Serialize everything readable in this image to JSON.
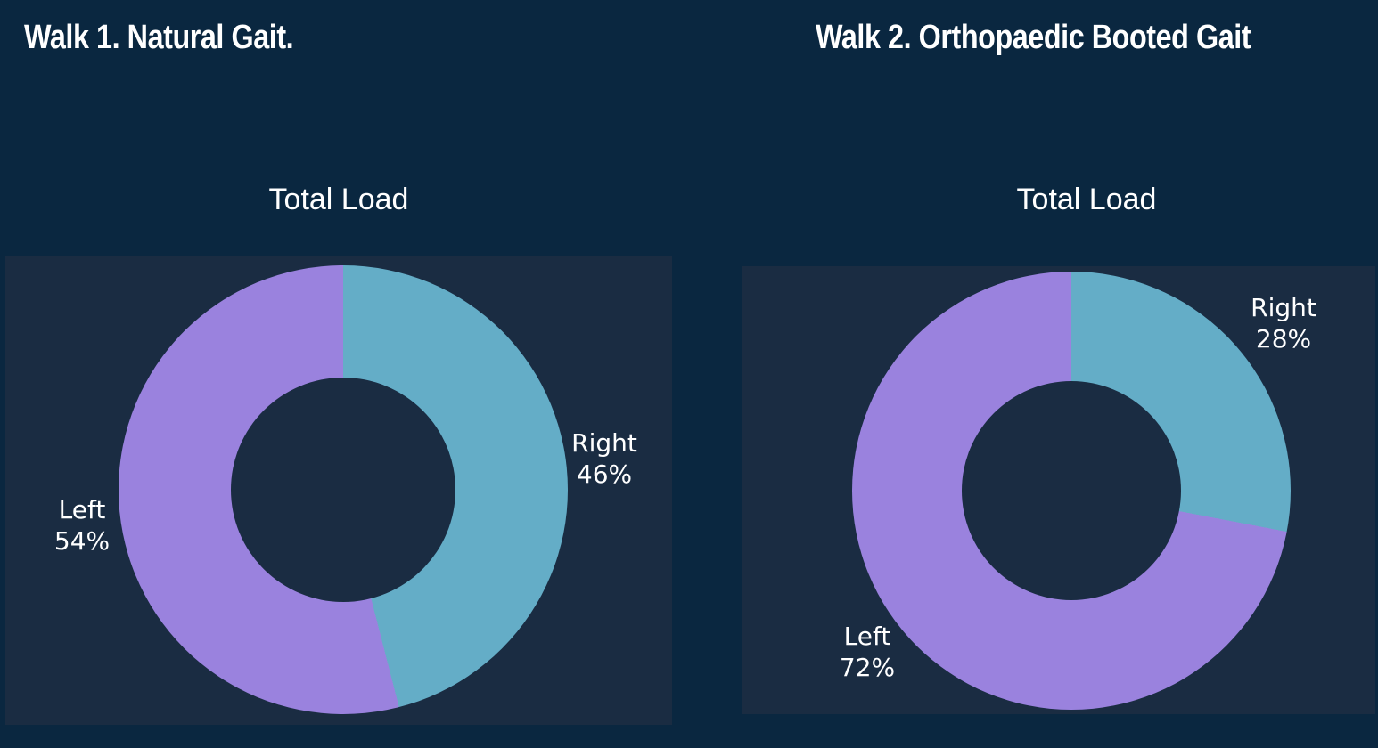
{
  "page": {
    "background": "#0A2740",
    "plot_background": "#1A2C42",
    "text_color": "#FFFFFF"
  },
  "chart_data": [
    {
      "type": "pie",
      "subtype": "donut",
      "hole": 0.5,
      "heading": "Walk 1. Natural Gait.",
      "title": "Total Load",
      "labels": [
        "Right",
        "Left"
      ],
      "values": [
        46,
        54
      ],
      "unit": "%",
      "value_labels": [
        "46%",
        "54%"
      ],
      "colors": [
        "#64ADC7",
        "#9A82DE"
      ],
      "rotation_deg": 0,
      "direction": "clockwise",
      "label_position": "outside",
      "legend": "none"
    },
    {
      "type": "pie",
      "subtype": "donut",
      "hole": 0.5,
      "heading": "Walk 2. Orthopaedic Booted Gait",
      "title": "Total Load",
      "labels": [
        "Right",
        "Left"
      ],
      "values": [
        28,
        72
      ],
      "unit": "%",
      "value_labels": [
        "28%",
        "72%"
      ],
      "colors": [
        "#64ADC7",
        "#9A82DE"
      ],
      "rotation_deg": 0,
      "direction": "clockwise",
      "label_position": "outside",
      "legend": "none"
    }
  ]
}
